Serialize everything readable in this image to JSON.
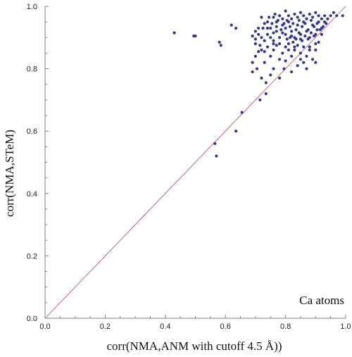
{
  "chart_data": {
    "type": "scatter",
    "xlabel": "corr(NMA,ANM with cutoff 4.5 Å))",
    "ylabel": "corr(NMA,STeM)",
    "annotation": "Ca atoms",
    "xlim": [
      0.0,
      1.0
    ],
    "ylim": [
      0.0,
      1.0
    ],
    "xticks": [
      "0.0",
      "0.2",
      "0.4",
      "0.6",
      "0.8",
      "1.0"
    ],
    "yticks": [
      "0.0",
      "0.2",
      "0.4",
      "0.6",
      "0.8",
      "1.0"
    ],
    "grid": false,
    "reference_line": {
      "from": [
        0.0,
        0.0
      ],
      "to": [
        1.0,
        1.0
      ],
      "color": "#c0506a"
    },
    "point_color": "#35378a",
    "axis_color": "#808080",
    "points": [
      [
        0.43,
        0.915
      ],
      [
        0.495,
        0.905
      ],
      [
        0.5,
        0.905
      ],
      [
        0.58,
        0.885
      ],
      [
        0.585,
        0.875
      ],
      [
        0.62,
        0.94
      ],
      [
        0.635,
        0.93
      ],
      [
        0.565,
        0.56
      ],
      [
        0.57,
        0.52
      ],
      [
        0.635,
        0.6
      ],
      [
        0.655,
        0.66
      ],
      [
        0.715,
        0.7
      ],
      [
        0.735,
        0.72
      ],
      [
        0.735,
        0.755
      ],
      [
        0.69,
        0.79
      ],
      [
        0.705,
        0.8
      ],
      [
        0.72,
        0.77
      ],
      [
        0.75,
        0.78
      ],
      [
        0.76,
        0.8
      ],
      [
        0.78,
        0.77
      ],
      [
        0.795,
        0.8
      ],
      [
        0.8,
        0.825
      ],
      [
        0.82,
        0.79
      ],
      [
        0.84,
        0.81
      ],
      [
        0.69,
        0.82
      ],
      [
        0.7,
        0.84
      ],
      [
        0.72,
        0.86
      ],
      [
        0.73,
        0.82
      ],
      [
        0.75,
        0.84
      ],
      [
        0.76,
        0.86
      ],
      [
        0.78,
        0.83
      ],
      [
        0.79,
        0.85
      ],
      [
        0.81,
        0.86
      ],
      [
        0.82,
        0.84
      ],
      [
        0.83,
        0.87
      ],
      [
        0.85,
        0.85
      ],
      [
        0.86,
        0.87
      ],
      [
        0.87,
        0.84
      ],
      [
        0.88,
        0.86
      ],
      [
        0.89,
        0.83
      ],
      [
        0.9,
        0.88
      ],
      [
        0.7,
        0.88
      ],
      [
        0.72,
        0.9
      ],
      [
        0.73,
        0.89
      ],
      [
        0.74,
        0.91
      ],
      [
        0.75,
        0.93
      ],
      [
        0.76,
        0.89
      ],
      [
        0.77,
        0.92
      ],
      [
        0.78,
        0.9
      ],
      [
        0.79,
        0.94
      ],
      [
        0.8,
        0.91
      ],
      [
        0.81,
        0.95
      ],
      [
        0.82,
        0.92
      ],
      [
        0.83,
        0.9
      ],
      [
        0.84,
        0.94
      ],
      [
        0.85,
        0.91
      ],
      [
        0.86,
        0.95
      ],
      [
        0.87,
        0.92
      ],
      [
        0.88,
        0.9
      ],
      [
        0.89,
        0.94
      ],
      [
        0.9,
        0.91
      ],
      [
        0.91,
        0.95
      ],
      [
        0.92,
        0.93
      ],
      [
        0.93,
        0.97
      ],
      [
        0.94,
        0.96
      ],
      [
        0.95,
        0.97
      ],
      [
        0.96,
        0.98
      ],
      [
        0.97,
        0.97
      ],
      [
        0.99,
        0.97
      ],
      [
        0.7,
        0.92
      ],
      [
        0.71,
        0.91
      ],
      [
        0.72,
        0.965
      ],
      [
        0.74,
        0.95
      ],
      [
        0.76,
        0.965
      ],
      [
        0.77,
        0.95
      ],
      [
        0.78,
        0.97
      ],
      [
        0.79,
        0.96
      ],
      [
        0.8,
        0.985
      ],
      [
        0.81,
        0.97
      ],
      [
        0.82,
        0.96
      ],
      [
        0.83,
        0.975
      ],
      [
        0.84,
        0.965
      ],
      [
        0.85,
        0.98
      ],
      [
        0.86,
        0.97
      ],
      [
        0.87,
        0.96
      ],
      [
        0.88,
        0.975
      ],
      [
        0.89,
        0.965
      ],
      [
        0.9,
        0.98
      ],
      [
        0.91,
        0.97
      ],
      [
        0.92,
        0.96
      ],
      [
        0.93,
        0.95
      ],
      [
        0.91,
        0.885
      ],
      [
        0.92,
        0.91
      ],
      [
        0.9,
        0.86
      ],
      [
        0.88,
        0.87
      ],
      [
        0.85,
        0.895
      ],
      [
        0.84,
        0.875
      ],
      [
        0.82,
        0.905
      ],
      [
        0.8,
        0.93
      ],
      [
        0.79,
        0.915
      ],
      [
        0.77,
        0.935
      ],
      [
        0.76,
        0.915
      ],
      [
        0.74,
        0.87
      ],
      [
        0.73,
        0.855
      ],
      [
        0.71,
        0.855
      ],
      [
        0.69,
        0.905
      ],
      [
        0.7,
        0.895
      ],
      [
        0.715,
        0.875
      ],
      [
        0.73,
        0.945
      ],
      [
        0.745,
        0.965
      ],
      [
        0.755,
        0.945
      ],
      [
        0.765,
        0.975
      ],
      [
        0.775,
        0.955
      ],
      [
        0.785,
        0.925
      ],
      [
        0.795,
        0.945
      ],
      [
        0.805,
        0.955
      ],
      [
        0.815,
        0.935
      ],
      [
        0.825,
        0.945
      ],
      [
        0.835,
        0.925
      ],
      [
        0.845,
        0.955
      ],
      [
        0.855,
        0.935
      ],
      [
        0.865,
        0.945
      ],
      [
        0.875,
        0.925
      ],
      [
        0.885,
        0.955
      ],
      [
        0.895,
        0.935
      ],
      [
        0.905,
        0.945
      ],
      [
        0.915,
        0.925
      ],
      [
        0.925,
        0.935
      ],
      [
        0.935,
        0.945
      ],
      [
        0.86,
        0.82
      ],
      [
        0.87,
        0.8
      ],
      [
        0.9,
        0.82
      ],
      [
        0.8,
        0.87
      ],
      [
        0.81,
        0.88
      ],
      [
        0.83,
        0.86
      ],
      [
        0.85,
        0.83
      ],
      [
        0.855,
        0.89
      ],
      [
        0.865,
        0.905
      ],
      [
        0.875,
        0.895
      ],
      [
        0.885,
        0.915
      ],
      [
        0.895,
        0.905
      ],
      [
        0.905,
        0.925
      ],
      [
        0.845,
        0.915
      ],
      [
        0.835,
        0.895
      ],
      [
        0.825,
        0.885
      ],
      [
        0.815,
        0.9
      ],
      [
        0.805,
        0.895
      ],
      [
        0.78,
        0.88
      ],
      [
        0.77,
        0.875
      ],
      [
        0.76,
        0.88
      ],
      [
        0.75,
        0.9
      ],
      [
        0.74,
        0.93
      ],
      [
        0.725,
        0.93
      ],
      [
        0.71,
        0.93
      ]
    ]
  }
}
